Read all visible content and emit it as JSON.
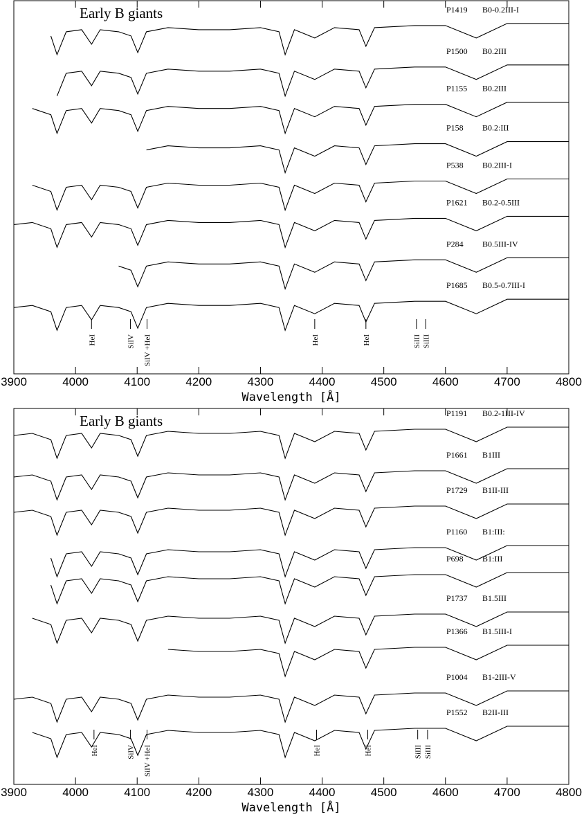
{
  "chart_data": [
    {
      "type": "line",
      "title": "Early B giants",
      "x_label": "Wavelength [Å]",
      "xlim": [
        3900,
        4800
      ],
      "xticks": [
        3900,
        4000,
        4100,
        4200,
        4300,
        4400,
        4500,
        4600,
        4700,
        4800
      ],
      "ylim": [
        0,
        18
      ],
      "color": "#000000",
      "x": [
        3900,
        3930,
        3960,
        3970,
        3985,
        4010,
        4026,
        4040,
        4070,
        4090,
        4101,
        4115,
        4150,
        4200,
        4250,
        4300,
        4330,
        4340,
        4355,
        4388,
        4420,
        4460,
        4471,
        4485,
        4550,
        4600,
        4650,
        4700,
        4750,
        4800
      ],
      "series": [
        {
          "name": "P1419",
          "label": "B0-0.2III-I",
          "values": [
            null,
            null,
            16.3,
            15.4,
            16.5,
            16.6,
            15.9,
            16.6,
            16.5,
            16.3,
            15.5,
            16.5,
            16.7,
            16.6,
            16.6,
            16.7,
            16.5,
            15.4,
            16.6,
            16.2,
            16.7,
            16.6,
            15.8,
            16.7,
            16.8,
            16.8,
            16.2,
            16.9,
            16.9,
            16.9
          ]
        },
        {
          "name": "P1500",
          "label": "B0.2III",
          "values": [
            null,
            null,
            null,
            13.4,
            14.5,
            14.6,
            13.9,
            14.6,
            14.5,
            14.3,
            13.5,
            14.5,
            14.7,
            14.6,
            14.6,
            14.7,
            14.5,
            13.4,
            14.6,
            14.2,
            14.7,
            14.6,
            13.8,
            14.7,
            14.8,
            14.8,
            14.2,
            14.9,
            14.9,
            14.9
          ]
        },
        {
          "name": "P1155",
          "label": "B0.2III",
          "values": [
            null,
            12.8,
            12.5,
            11.6,
            12.7,
            12.8,
            12.1,
            12.8,
            12.7,
            12.5,
            11.7,
            12.7,
            12.9,
            12.8,
            12.8,
            12.9,
            12.7,
            11.6,
            12.8,
            12.4,
            12.9,
            12.8,
            12.0,
            12.9,
            13.0,
            13.0,
            12.4,
            13.1,
            13.1,
            13.1
          ]
        },
        {
          "name": "P158",
          "label": "B0.2:III",
          "values": [
            null,
            null,
            null,
            null,
            null,
            null,
            null,
            null,
            null,
            null,
            null,
            10.8,
            11.0,
            10.9,
            10.9,
            11.0,
            10.8,
            9.7,
            10.9,
            10.5,
            11.0,
            10.9,
            10.1,
            11.0,
            11.1,
            11.1,
            10.5,
            11.2,
            11.2,
            11.2
          ]
        },
        {
          "name": "P538",
          "label": "B0.2III-I",
          "values": [
            null,
            9.1,
            8.8,
            7.9,
            9,
            9.1,
            8.4,
            9.1,
            9,
            8.8,
            8,
            9,
            9.2,
            9.1,
            9.1,
            9.2,
            9,
            7.9,
            9.1,
            8.7,
            9.2,
            9.1,
            8.3,
            9.2,
            9.3,
            9.3,
            8.7,
            9.4,
            9.4,
            9.4
          ]
        },
        {
          "name": "P1621",
          "label": "B0.2-0.5III",
          "values": [
            7.2,
            7.3,
            7.0,
            6.1,
            7.2,
            7.3,
            6.6,
            7.3,
            7.2,
            7.0,
            6.2,
            7.2,
            7.4,
            7.3,
            7.3,
            7.4,
            7.2,
            6.1,
            7.3,
            6.9,
            7.4,
            7.3,
            6.5,
            7.4,
            7.5,
            7.5,
            6.9,
            7.6,
            7.6,
            7.6
          ]
        },
        {
          "name": "P284",
          "label": "B0.5III-IV",
          "values": [
            null,
            null,
            null,
            null,
            null,
            null,
            null,
            null,
            5.2,
            5.0,
            4.2,
            5.2,
            5.4,
            5.3,
            5.3,
            5.4,
            5.2,
            4.1,
            5.3,
            4.9,
            5.4,
            5.3,
            4.5,
            5.4,
            5.5,
            5.5,
            4.9,
            5.6,
            5.6,
            5.6
          ]
        },
        {
          "name": "P1685",
          "label": "B0.5-0.7III-I",
          "values": [
            3.2,
            3.3,
            3.0,
            2.1,
            3.2,
            3.3,
            2.6,
            3.3,
            3.2,
            3.0,
            2.2,
            3.2,
            3.4,
            3.3,
            3.3,
            3.4,
            3.2,
            2.1,
            3.3,
            2.9,
            3.4,
            3.3,
            2.5,
            3.4,
            3.5,
            3.5,
            2.9,
            3.6,
            3.6,
            3.6
          ]
        }
      ],
      "line_ids": [
        {
          "label": "HeI",
          "x": 4026
        },
        {
          "label": "SiIV",
          "x": 4089
        },
        {
          "label": "SiIV +HeI",
          "x": 4116
        },
        {
          "label": "HeI",
          "x": 4388
        },
        {
          "label": "HeI",
          "x": 4471
        },
        {
          "label": "SiIII",
          "x": 4553
        },
        {
          "label": "SiIII",
          "x": 4568
        }
      ]
    },
    {
      "type": "line",
      "title": "Early B giants",
      "x_label": "Wavelength [Å]",
      "xlim": [
        3900,
        4800
      ],
      "xticks": [
        3900,
        4000,
        4100,
        4200,
        4300,
        4400,
        4500,
        4600,
        4700,
        4800
      ],
      "ylim": [
        0,
        18.1
      ],
      "color": "#000000",
      "x": [
        3900,
        3930,
        3960,
        3970,
        3985,
        4010,
        4026,
        4040,
        4070,
        4090,
        4101,
        4115,
        4150,
        4200,
        4250,
        4300,
        4330,
        4340,
        4355,
        4388,
        4420,
        4460,
        4471,
        4485,
        4550,
        4600,
        4650,
        4700,
        4750,
        4800
      ],
      "series": [
        {
          "name": "P1191",
          "label": "B0.2-1III-IV",
          "values": [
            16.8,
            16.9,
            16.6,
            15.7,
            16.8,
            16.9,
            16.2,
            16.9,
            16.8,
            16.6,
            15.8,
            16.8,
            17.0,
            16.9,
            16.9,
            17.0,
            16.8,
            15.7,
            16.9,
            16.5,
            17.0,
            16.9,
            16.1,
            17.0,
            17.1,
            17.1,
            16.5,
            17.2,
            17.2,
            17.2
          ]
        },
        {
          "name": "P1661",
          "label": "B1III",
          "values": [
            14.8,
            14.9,
            14.6,
            13.7,
            14.8,
            14.9,
            14.2,
            14.9,
            14.8,
            14.6,
            13.8,
            14.8,
            15.0,
            14.9,
            14.9,
            15.0,
            14.8,
            13.7,
            14.9,
            14.5,
            15.0,
            14.9,
            14.1,
            15.0,
            15.1,
            15.1,
            14.5,
            15.2,
            15.2,
            15.2
          ]
        },
        {
          "name": "P1729",
          "label": "B1II-III",
          "values": [
            13.1,
            13.2,
            12.9,
            12.0,
            13.1,
            13.2,
            12.5,
            13.2,
            13.1,
            12.9,
            12.1,
            13.1,
            13.3,
            13.2,
            13.2,
            13.3,
            13.1,
            12.0,
            13.2,
            12.8,
            13.3,
            13.2,
            12.4,
            13.3,
            13.4,
            13.4,
            12.8,
            13.5,
            13.5,
            13.5
          ]
        },
        {
          "name": "P1160",
          "label": "B1:III:",
          "values": [
            null,
            null,
            10.9,
            10.0,
            11.1,
            11.2,
            10.5,
            11.2,
            11.1,
            10.9,
            10.1,
            11.1,
            11.3,
            11.2,
            11.2,
            11.3,
            11.1,
            10.0,
            11.2,
            10.8,
            11.3,
            11.2,
            10.4,
            11.3,
            11.4,
            11.4,
            10.8,
            11.5,
            11.5,
            11.5
          ]
        },
        {
          "name": "P698",
          "label": "B1:III",
          "values": [
            null,
            null,
            9.6,
            8.7,
            9.8,
            9.9,
            9.2,
            9.9,
            9.8,
            9.6,
            8.8,
            9.8,
            10.0,
            9.9,
            9.9,
            10.0,
            9.8,
            8.7,
            9.9,
            9.5,
            10.0,
            9.9,
            9.1,
            10.0,
            10.1,
            10.1,
            9.5,
            10.2,
            10.2,
            10.2
          ]
        },
        {
          "name": "P1737",
          "label": "B1.5III",
          "values": [
            null,
            8.0,
            7.7,
            6.8,
            7.9,
            8.0,
            7.3,
            8.0,
            7.9,
            7.7,
            6.9,
            7.9,
            8.1,
            8.0,
            8.0,
            8.1,
            7.9,
            6.8,
            8.0,
            7.6,
            8.1,
            8.0,
            7.2,
            8.1,
            8.2,
            8.2,
            7.6,
            8.3,
            8.3,
            8.3
          ]
        },
        {
          "name": "P1366",
          "label": "B1.5III-I",
          "values": [
            null,
            null,
            null,
            null,
            null,
            null,
            null,
            null,
            null,
            null,
            null,
            null,
            6.5,
            6.4,
            6.4,
            6.5,
            6.3,
            5.2,
            6.4,
            6.0,
            6.5,
            6.4,
            5.6,
            6.5,
            6.6,
            6.6,
            6.0,
            6.7,
            6.7,
            6.7
          ]
        },
        {
          "name": "P1004",
          "label": "B1-2III-V",
          "values": [
            4.1,
            4.2,
            3.9,
            3.0,
            4.1,
            4.2,
            3.5,
            4.2,
            4.1,
            3.9,
            3.1,
            4.1,
            4.3,
            4.2,
            4.2,
            4.3,
            4.1,
            3.0,
            4.2,
            3.8,
            4.3,
            4.2,
            3.4,
            4.3,
            4.4,
            4.4,
            3.8,
            4.5,
            4.5,
            4.5
          ]
        },
        {
          "name": "P1552",
          "label": "B2II-III",
          "values": [
            null,
            2.5,
            2.2,
            1.3,
            2.4,
            2.5,
            1.8,
            2.5,
            2.4,
            2.2,
            1.4,
            2.4,
            2.6,
            2.5,
            2.5,
            2.6,
            2.4,
            1.3,
            2.5,
            2.1,
            2.6,
            2.5,
            1.7,
            2.6,
            2.7,
            2.7,
            2.1,
            2.8,
            2.8,
            2.8
          ]
        }
      ],
      "line_ids": [
        {
          "label": "HeI",
          "x": 4030
        },
        {
          "label": "SiIV",
          "x": 4089
        },
        {
          "label": "SiIV +HeI",
          "x": 4116
        },
        {
          "label": "HeI",
          "x": 4391
        },
        {
          "label": "HeI",
          "x": 4474
        },
        {
          "label": "SiIII",
          "x": 4555
        },
        {
          "label": "SiIII",
          "x": 4571
        }
      ]
    }
  ]
}
